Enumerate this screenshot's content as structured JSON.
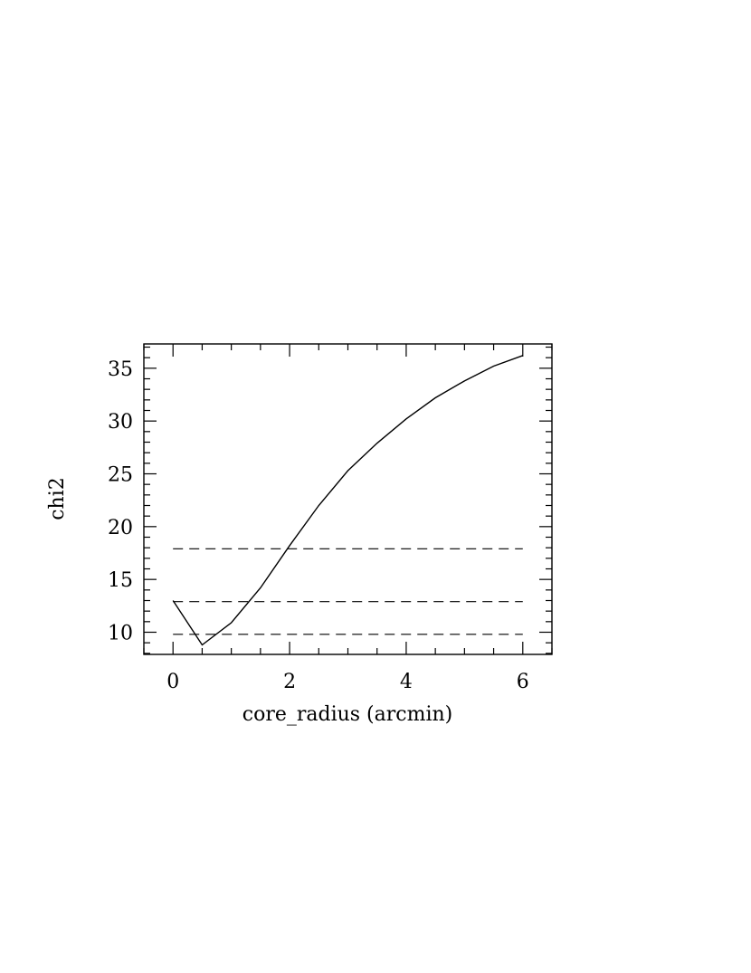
{
  "chart_data": {
    "type": "line",
    "xlabel": "core_radius (arcmin)",
    "ylabel": "chi2",
    "x": [
      0,
      0.5,
      1,
      1.5,
      2,
      2.5,
      3,
      3.5,
      4,
      4.5,
      5,
      5.5,
      6
    ],
    "series": [
      {
        "color": "#000000",
        "values": [
          13.0,
          8.8,
          10.9,
          14.2,
          18.2,
          22.0,
          25.3,
          27.9,
          30.2,
          32.2,
          33.8,
          35.2,
          36.2
        ]
      }
    ],
    "hlines": [
      17.9,
      12.9,
      9.8
    ],
    "hline_dash": "11,7",
    "xlim": [
      -0.5,
      6.5
    ],
    "ylim": [
      7.9,
      37.3
    ],
    "xticks": [
      0,
      2,
      4,
      6
    ],
    "yticks": [
      10,
      15,
      20,
      25,
      30,
      35
    ],
    "xminorticks": [
      -0.5,
      0.5,
      1,
      1.5,
      2.5,
      3,
      3.5,
      4.5,
      5,
      5.5,
      6.5
    ],
    "yminorticks": [
      8,
      9,
      11,
      12,
      13,
      14,
      16,
      17,
      18,
      19,
      21,
      22,
      23,
      24,
      26,
      27,
      28,
      29,
      31,
      32,
      33,
      34,
      36,
      37
    ],
    "grid": false
  }
}
